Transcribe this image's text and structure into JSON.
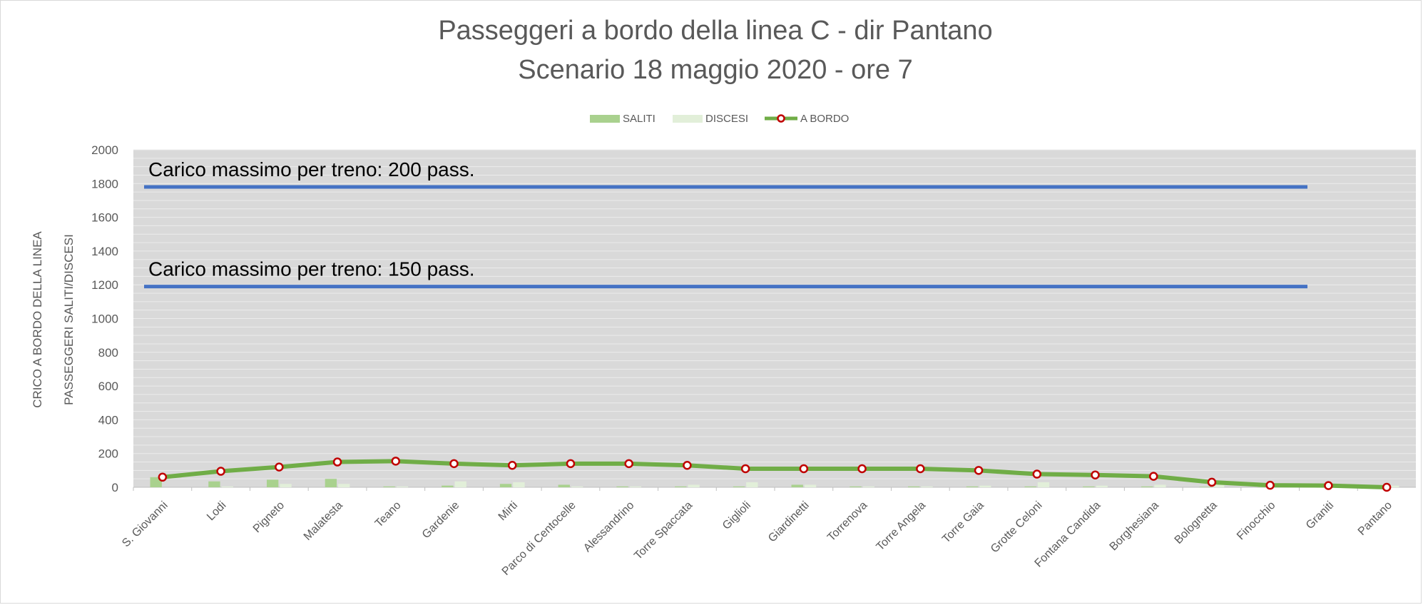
{
  "chart_data": {
    "type": "bar+line",
    "title": "Passeggeri a bordo della linea C - dir Pantano",
    "subtitle": "Scenario 18 maggio 2020 - ore 7",
    "ylabel_outer": "CRICO A BORDO DELLA LINEA",
    "ylabel_inner": "PASSEGGERI SALITI/DISCESI",
    "ylim": [
      0,
      2000
    ],
    "yticks": [
      "0",
      "200",
      "400",
      "600",
      "800",
      "1000",
      "1200",
      "1400",
      "1600",
      "1800",
      "2000"
    ],
    "grid": true,
    "legend_position": "top-center",
    "categories": [
      "S. Giovanni",
      "Lodi",
      "Pigneto",
      "Malatesta",
      "Teano",
      "Gardenie",
      "Mirti",
      "Parco di Centocelle",
      "Alessandrino",
      "Torre Spaccata",
      "Giglioli",
      "Giardinetti",
      "Torrenova",
      "Torre Angela",
      "Torre Gaia",
      "Grotte Celoni",
      "Fontana Candida",
      "Borghesiana",
      "Bolognetta",
      "Finocchio",
      "Graniti",
      "Pantano"
    ],
    "series": [
      {
        "name": "SALITI",
        "kind": "bar",
        "color": "#a9d18e",
        "values": [
          60,
          35,
          45,
          50,
          5,
          10,
          20,
          15,
          5,
          5,
          5,
          15,
          5,
          5,
          5,
          5,
          5,
          5,
          3,
          2,
          2,
          0
        ]
      },
      {
        "name": "DISCESI",
        "kind": "bar",
        "color": "#e2efd9",
        "values": [
          0,
          5,
          20,
          20,
          5,
          35,
          30,
          5,
          5,
          15,
          30,
          15,
          5,
          5,
          10,
          30,
          10,
          15,
          35,
          20,
          5,
          10
        ]
      },
      {
        "name": "A BORDO",
        "kind": "line",
        "color": "#70ad47",
        "marker_color": "#c00000",
        "values": [
          60,
          95,
          120,
          150,
          155,
          140,
          130,
          140,
          140,
          130,
          110,
          110,
          110,
          110,
          100,
          78,
          73,
          65,
          30,
          12,
          10,
          0
        ]
      }
    ],
    "annotations": [
      {
        "text": "Carico massimo per treno: 200 pass.",
        "y": 1780,
        "color": "#4472c4"
      },
      {
        "text": "Carico massimo per treno: 150 pass.",
        "y": 1190,
        "color": "#4472c4"
      }
    ],
    "plot_background": "#d9d9d9"
  }
}
